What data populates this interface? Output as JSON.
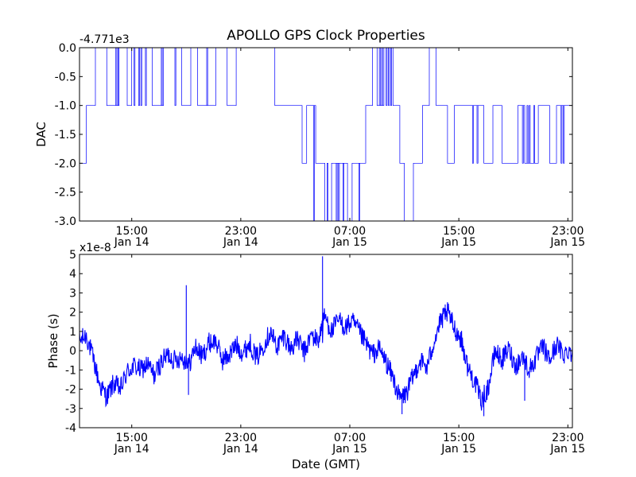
{
  "chart_data": {
    "title": "APOLLO GPS Clock Properties",
    "xlabel": "Date (GMT)",
    "series_color": "#0000ff",
    "x_ticks": [
      {
        "time": "Jan 14 15:00",
        "hour": "15:00",
        "date": "Jan 14"
      },
      {
        "time": "Jan 14 23:00",
        "hour": "23:00",
        "date": "Jan 14"
      },
      {
        "time": "Jan 15 07:00",
        "hour": "07:00",
        "date": "Jan 15"
      },
      {
        "time": "Jan 15 15:00",
        "hour": "15:00",
        "date": "Jan 15"
      },
      {
        "time": "Jan 15 23:00",
        "hour": "23:00",
        "date": "Jan 15"
      }
    ],
    "xlim": [
      "Jan 14 11:10",
      "Jan 15 23:20"
    ],
    "panels": [
      {
        "id": "dac",
        "type": "line",
        "ylabel": "DAC",
        "offset_label": "-4.771e3",
        "ylim": [
          -3.0,
          0.0
        ],
        "y_ticks": [
          "0.0",
          "-0.5",
          "-1.0",
          "-1.5",
          "-2.0",
          "-2.5",
          "-3.0"
        ],
        "tick_values": [
          0.0,
          -0.5,
          -1.0,
          -1.5,
          -2.0,
          -2.5,
          -3.0
        ],
        "levels": [
          0,
          -1,
          -2,
          -3
        ],
        "segments": [
          {
            "start": "Jan 14 11:10",
            "end": "Jan 14 11:40",
            "value": -2
          },
          {
            "start": "Jan 14 11:40",
            "end": "Jan 14 12:20",
            "value": -1
          },
          {
            "start": "Jan 14 12:20",
            "end": "Jan 14 13:10",
            "value": 0
          },
          {
            "start": "Jan 14 13:10",
            "end": "Jan 14 14:00",
            "value": -1
          },
          {
            "start": "Jan 14 14:00",
            "end": "Jan 14 14:40",
            "value": 0
          },
          {
            "start": "Jan 14 14:40",
            "end": "Jan 14 15:00",
            "value": -1
          },
          {
            "start": "Jan 14 15:00",
            "end": "Jan 14 16:30",
            "value": 0
          },
          {
            "start": "Jan 14 16:30",
            "end": "Jan 14 17:20",
            "value": -1
          },
          {
            "start": "Jan 14 17:20",
            "end": "Jan 14 18:40",
            "value": 0
          },
          {
            "start": "Jan 14 18:40",
            "end": "Jan 14 19:20",
            "value": -1
          },
          {
            "start": "Jan 14 19:20",
            "end": "Jan 14 19:50",
            "value": 0
          },
          {
            "start": "Jan 14 19:50",
            "end": "Jan 14 21:10",
            "value": -1
          },
          {
            "start": "Jan 14 21:10",
            "end": "Jan 14 22:00",
            "value": 0
          },
          {
            "start": "Jan 14 22:00",
            "end": "Jan 14 22:40",
            "value": -1
          },
          {
            "start": "Jan 14 22:40",
            "end": "Jan 15 01:30",
            "value": 0
          },
          {
            "start": "Jan 15 01:30",
            "end": "Jan 15 03:30",
            "value": -1
          },
          {
            "start": "Jan 15 03:30",
            "end": "Jan 15 03:50",
            "value": -2
          },
          {
            "start": "Jan 15 03:50",
            "end": "Jan 15 04:30",
            "value": -1
          },
          {
            "start": "Jan 15 04:30",
            "end": "Jan 15 05:10",
            "value": -2
          },
          {
            "start": "Jan 15 05:10",
            "end": "Jan 15 05:40",
            "value": -3
          },
          {
            "start": "Jan 15 05:40",
            "end": "Jan 15 06:50",
            "value": -2
          },
          {
            "start": "Jan 15 06:50",
            "end": "Jan 15 07:10",
            "value": -3
          },
          {
            "start": "Jan 15 07:10",
            "end": "Jan 15 08:10",
            "value": -2
          },
          {
            "start": "Jan 15 08:10",
            "end": "Jan 15 08:40",
            "value": -1
          },
          {
            "start": "Jan 15 08:40",
            "end": "Jan 15 09:00",
            "value": 0
          },
          {
            "start": "Jan 15 09:00",
            "end": "Jan 15 09:30",
            "value": -1
          },
          {
            "start": "Jan 15 09:30",
            "end": "Jan 15 10:10",
            "value": 0
          },
          {
            "start": "Jan 15 10:10",
            "end": "Jan 15 10:40",
            "value": -1
          },
          {
            "start": "Jan 15 10:40",
            "end": "Jan 15 11:00",
            "value": -2
          },
          {
            "start": "Jan 15 11:00",
            "end": "Jan 15 11:40",
            "value": -3
          },
          {
            "start": "Jan 15 11:40",
            "end": "Jan 15 12:20",
            "value": -2
          },
          {
            "start": "Jan 15 12:20",
            "end": "Jan 15 12:50",
            "value": -1
          },
          {
            "start": "Jan 15 12:50",
            "end": "Jan 15 13:20",
            "value": 0
          },
          {
            "start": "Jan 15 13:20",
            "end": "Jan 15 14:10",
            "value": -1
          },
          {
            "start": "Jan 15 14:10",
            "end": "Jan 15 14:40",
            "value": -2
          },
          {
            "start": "Jan 15 14:40",
            "end": "Jan 15 16:50",
            "value": -1
          },
          {
            "start": "Jan 15 16:50",
            "end": "Jan 15 17:30",
            "value": -2
          },
          {
            "start": "Jan 15 17:30",
            "end": "Jan 15 18:10",
            "value": -1
          },
          {
            "start": "Jan 15 18:10",
            "end": "Jan 15 19:20",
            "value": -2
          },
          {
            "start": "Jan 15 19:20",
            "end": "Jan 15 19:50",
            "value": -1
          },
          {
            "start": "Jan 15 19:50",
            "end": "Jan 15 20:50",
            "value": -2
          },
          {
            "start": "Jan 15 20:50",
            "end": "Jan 15 21:40",
            "value": -1
          },
          {
            "start": "Jan 15 21:40",
            "end": "Jan 15 22:10",
            "value": -2
          },
          {
            "start": "Jan 15 22:10",
            "end": "Jan 15 23:20",
            "value": -1
          }
        ],
        "spikes": [
          {
            "time": "Jan 14 13:50",
            "to": 0
          },
          {
            "time": "Jan 14 14:00",
            "to": -1
          },
          {
            "time": "Jan 14 15:10",
            "to": -1
          },
          {
            "time": "Jan 14 15:30",
            "to": -1
          },
          {
            "time": "Jan 14 15:40",
            "to": -1
          },
          {
            "time": "Jan 14 16:00",
            "to": -1
          },
          {
            "time": "Jan 14 17:10",
            "to": 0
          },
          {
            "time": "Jan 14 18:10",
            "to": -1
          },
          {
            "time": "Jan 14 20:30",
            "to": 0
          },
          {
            "time": "Jan 15 04:20",
            "to": -3
          },
          {
            "time": "Jan 15 05:20",
            "to": -2
          },
          {
            "time": "Jan 15 06:00",
            "to": -3
          },
          {
            "time": "Jan 15 06:10",
            "to": -3
          },
          {
            "time": "Jan 15 06:30",
            "to": -3
          },
          {
            "time": "Jan 15 07:40",
            "to": -3
          },
          {
            "time": "Jan 15 09:10",
            "to": 0
          },
          {
            "time": "Jan 15 09:20",
            "to": 0
          },
          {
            "time": "Jan 15 09:40",
            "to": -1
          },
          {
            "time": "Jan 15 09:50",
            "to": -1
          },
          {
            "time": "Jan 15 10:00",
            "to": -1
          },
          {
            "time": "Jan 15 16:00",
            "to": -2
          },
          {
            "time": "Jan 15 16:20",
            "to": -2
          },
          {
            "time": "Jan 15 19:40",
            "to": -2
          },
          {
            "time": "Jan 15 20:00",
            "to": -1
          },
          {
            "time": "Jan 15 20:10",
            "to": -1
          },
          {
            "time": "Jan 15 20:30",
            "to": -1
          },
          {
            "time": "Jan 15 22:30",
            "to": -2
          },
          {
            "time": "Jan 15 22:40",
            "to": -2
          }
        ]
      },
      {
        "id": "phase",
        "type": "line",
        "ylabel": "Phase (s)",
        "offset_label": "x1e-8",
        "ylim": [
          -4,
          5
        ],
        "y_ticks": [
          "5",
          "4",
          "3",
          "2",
          "1",
          "0",
          "-1",
          "-2",
          "-3",
          "-4"
        ],
        "tick_values": [
          5,
          4,
          3,
          2,
          1,
          0,
          -1,
          -2,
          -3,
          -4
        ],
        "points": [
          {
            "time": "Jan 14 11:10",
            "value": 0.5
          },
          {
            "time": "Jan 14 11:40",
            "value": 0.8
          },
          {
            "time": "Jan 14 12:10",
            "value": -0.4
          },
          {
            "time": "Jan 14 12:40",
            "value": -1.8
          },
          {
            "time": "Jan 14 13:10",
            "value": -2.4
          },
          {
            "time": "Jan 14 13:40",
            "value": -1.7
          },
          {
            "time": "Jan 14 14:10",
            "value": -2.0
          },
          {
            "time": "Jan 14 14:40",
            "value": -1.1
          },
          {
            "time": "Jan 14 15:10",
            "value": -0.8
          },
          {
            "time": "Jan 14 15:40",
            "value": -1.0
          },
          {
            "time": "Jan 14 16:10",
            "value": -0.7
          },
          {
            "time": "Jan 14 16:40",
            "value": -1.3
          },
          {
            "time": "Jan 14 17:10",
            "value": -0.6
          },
          {
            "time": "Jan 14 17:40",
            "value": -0.2
          },
          {
            "time": "Jan 14 18:10",
            "value": -0.5
          },
          {
            "time": "Jan 14 18:40",
            "value": -0.3
          },
          {
            "time": "Jan 14 19:10",
            "value": -0.8
          },
          {
            "time": "Jan 14 19:40",
            "value": 0.2
          },
          {
            "time": "Jan 14 20:10",
            "value": -0.3
          },
          {
            "time": "Jan 14 20:40",
            "value": 0.4
          },
          {
            "time": "Jan 14 21:10",
            "value": 0.5
          },
          {
            "time": "Jan 14 21:40",
            "value": -0.5
          },
          {
            "time": "Jan 14 22:10",
            "value": -0.2
          },
          {
            "time": "Jan 14 22:40",
            "value": 0.3
          },
          {
            "time": "Jan 14 23:10",
            "value": -0.1
          },
          {
            "time": "Jan 14 23:40",
            "value": 0.4
          },
          {
            "time": "Jan 15 00:10",
            "value": -0.4
          },
          {
            "time": "Jan 15 00:40",
            "value": 0.3
          },
          {
            "time": "Jan 15 01:10",
            "value": 1.0
          },
          {
            "time": "Jan 15 01:40",
            "value": 0.2
          },
          {
            "time": "Jan 15 02:10",
            "value": 0.8
          },
          {
            "time": "Jan 15 02:40",
            "value": 0.1
          },
          {
            "time": "Jan 15 03:10",
            "value": 0.6
          },
          {
            "time": "Jan 15 03:40",
            "value": -0.1
          },
          {
            "time": "Jan 15 04:10",
            "value": 0.8
          },
          {
            "time": "Jan 15 04:40",
            "value": 0.5
          },
          {
            "time": "Jan 15 05:10",
            "value": 1.8
          },
          {
            "time": "Jan 15 05:40",
            "value": 1.0
          },
          {
            "time": "Jan 15 06:10",
            "value": 1.6
          },
          {
            "time": "Jan 15 06:40",
            "value": 1.2
          },
          {
            "time": "Jan 15 07:10",
            "value": 1.5
          },
          {
            "time": "Jan 15 07:40",
            "value": 1.0
          },
          {
            "time": "Jan 15 08:10",
            "value": 0.4
          },
          {
            "time": "Jan 15 08:40",
            "value": -0.2
          },
          {
            "time": "Jan 15 09:10",
            "value": 0.1
          },
          {
            "time": "Jan 15 09:40",
            "value": -0.6
          },
          {
            "time": "Jan 15 10:10",
            "value": -1.4
          },
          {
            "time": "Jan 15 10:40",
            "value": -2.5
          },
          {
            "time": "Jan 15 11:10",
            "value": -2.2
          },
          {
            "time": "Jan 15 11:40",
            "value": -1.3
          },
          {
            "time": "Jan 15 12:10",
            "value": -0.5
          },
          {
            "time": "Jan 15 12:40",
            "value": -0.9
          },
          {
            "time": "Jan 15 13:10",
            "value": 0.5
          },
          {
            "time": "Jan 15 13:40",
            "value": 1.5
          },
          {
            "time": "Jan 15 14:10",
            "value": 2.0
          },
          {
            "time": "Jan 15 14:40",
            "value": 1.2
          },
          {
            "time": "Jan 15 15:10",
            "value": 0.6
          },
          {
            "time": "Jan 15 15:40",
            "value": -0.9
          },
          {
            "time": "Jan 15 16:10",
            "value": -1.6
          },
          {
            "time": "Jan 15 16:40",
            "value": -2.6
          },
          {
            "time": "Jan 15 17:10",
            "value": -1.9
          },
          {
            "time": "Jan 15 17:40",
            "value": 0.0
          },
          {
            "time": "Jan 15 18:10",
            "value": -0.5
          },
          {
            "time": "Jan 15 18:40",
            "value": 0.1
          },
          {
            "time": "Jan 15 19:10",
            "value": -0.8
          },
          {
            "time": "Jan 15 19:40",
            "value": -0.3
          },
          {
            "time": "Jan 15 20:10",
            "value": -1.0
          },
          {
            "time": "Jan 15 20:40",
            "value": -0.4
          },
          {
            "time": "Jan 15 21:10",
            "value": 0.2
          },
          {
            "time": "Jan 15 21:40",
            "value": -0.5
          },
          {
            "time": "Jan 15 22:10",
            "value": 0.3
          },
          {
            "time": "Jan 15 22:40",
            "value": -0.2
          },
          {
            "time": "Jan 15 23:10",
            "value": 0.1
          },
          {
            "time": "Jan 15 23:20",
            "value": -0.3
          }
        ],
        "spikes": [
          {
            "time": "Jan 14 19:00",
            "value": 3.4,
            "base": -0.3
          },
          {
            "time": "Jan 14 19:10",
            "value": -2.3,
            "base": -0.6
          },
          {
            "time": "Jan 15 05:00",
            "value": 4.9,
            "base": 0.4
          },
          {
            "time": "Jan 15 10:50",
            "value": -3.3,
            "base": -2.3
          },
          {
            "time": "Jan 15 14:00",
            "value": 2.4,
            "base": 1.6
          },
          {
            "time": "Jan 15 16:50",
            "value": -3.4,
            "base": -2.4
          },
          {
            "time": "Jan 15 19:50",
            "value": -2.6,
            "base": -0.6
          }
        ]
      }
    ]
  }
}
